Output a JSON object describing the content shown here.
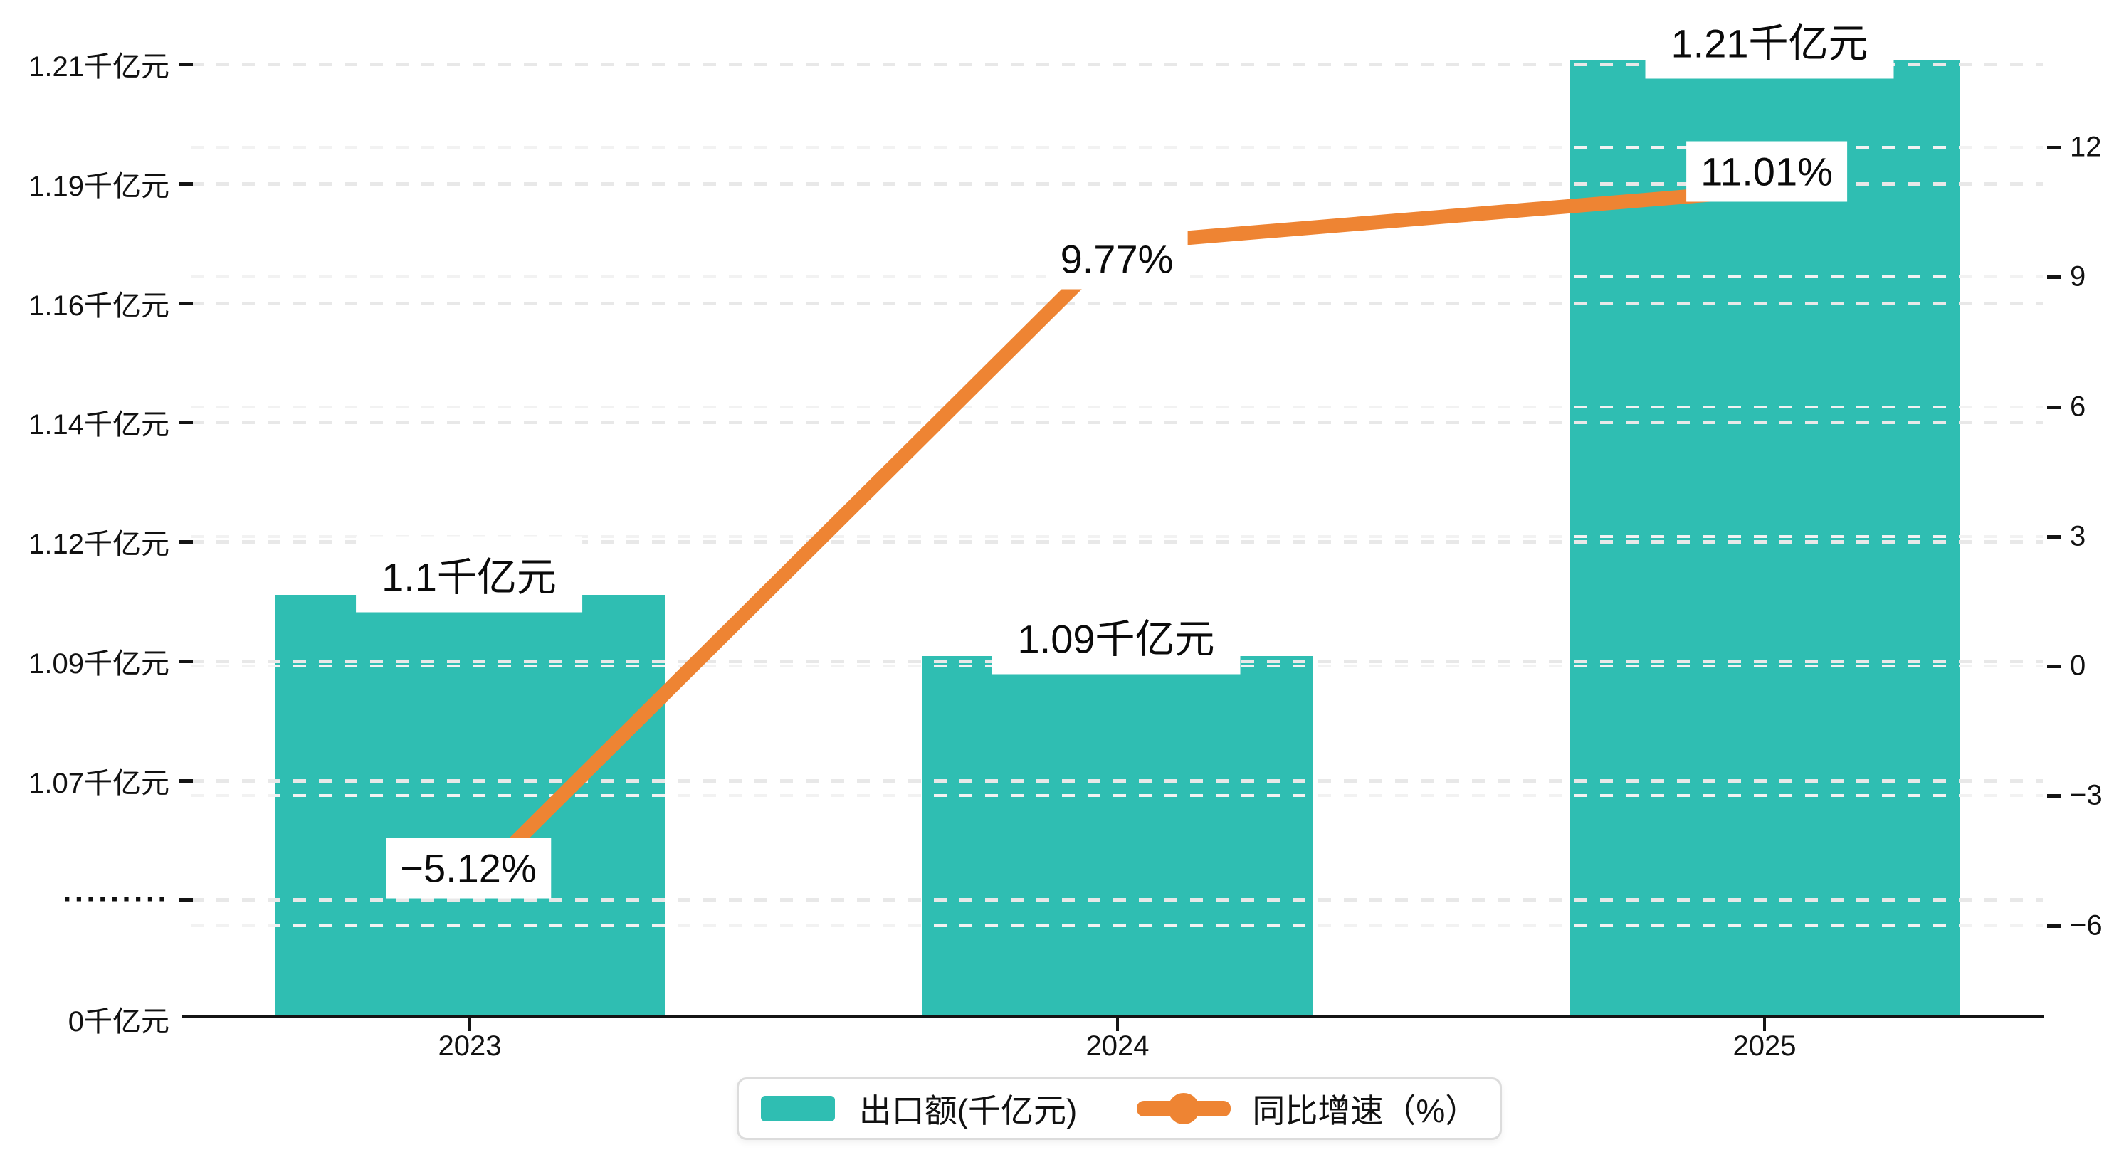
{
  "chart_data": {
    "type": "combo-bar-line",
    "categories": [
      "2023",
      "2024",
      "2025"
    ],
    "series": [
      {
        "name": "出口额(千亿元)",
        "type": "bar",
        "unit": "千亿元",
        "color": "#2FBEB2",
        "values": [
          1.1,
          1.09,
          1.21
        ],
        "data_labels": [
          "1.1千亿元",
          "1.09千亿元",
          "1.21千亿元"
        ]
      },
      {
        "name": "同比增速（%）",
        "type": "line",
        "unit": "%",
        "color": "#EE8433",
        "values": [
          -5.12,
          9.77,
          11.01
        ],
        "data_labels": [
          "−5.12%",
          "9.77%",
          "11.01%"
        ]
      }
    ],
    "left_axis": {
      "ticks_top_to_bottom": [
        "1.21千亿元",
        "1.19千亿元",
        "1.16千亿元",
        "1.14千亿元",
        "1.12千亿元",
        "1.09千亿元",
        "1.07千亿元",
        "·········",
        "0千亿元"
      ],
      "broken_axis": true
    },
    "right_axis": {
      "ticks_top_to_bottom": [
        "12",
        "9",
        "6",
        "3",
        "0",
        "−3",
        "−6"
      ],
      "tick_values_top_to_bottom": [
        12,
        9,
        6,
        3,
        0,
        -3,
        -6
      ],
      "range": [
        -6,
        12
      ]
    },
    "grid": "horizontal dashed",
    "legend_position": "bottom-center"
  },
  "legend": {
    "items": [
      {
        "label": "出口额(千亿元)",
        "color": "#2FBEB2",
        "marker": "rect"
      },
      {
        "label": "同比增速（%）",
        "color": "#EE8433",
        "marker": "line-dot"
      }
    ]
  },
  "colors": {
    "bar": "#2FBEB2",
    "line": "#EE8433",
    "axis": "#141414",
    "grid_major": "#e8e8e8",
    "grid_minor": "#f2f2f2",
    "text": "#111111",
    "label_bg": "#ffffff",
    "legend_border": "#dcdcdc"
  }
}
